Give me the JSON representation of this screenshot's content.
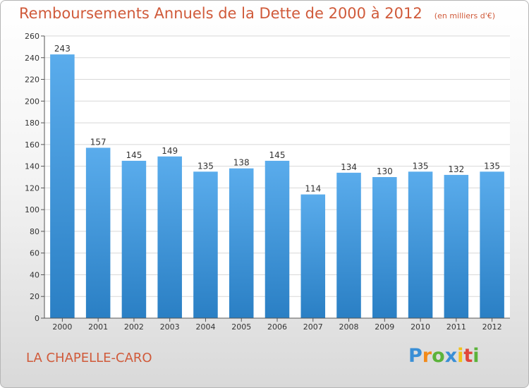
{
  "chart": {
    "title": "Remboursements Annuels de la Dette de 2000 à 2012",
    "unit": "(en milliers d'€)"
  },
  "footer": {
    "commune": "LA CHAPELLE-CARO",
    "logo": {
      "letters": [
        "P",
        "r",
        "o",
        "x",
        "i",
        "t",
        "i"
      ],
      "colors": [
        "#3a8fd6",
        "#f28a1a",
        "#5bb33a",
        "#3a8fd6",
        "#f2c21a",
        "#e0463a",
        "#5bb33a"
      ]
    }
  },
  "chart_data": {
    "type": "bar",
    "categories": [
      "2000",
      "2001",
      "2002",
      "2003",
      "2004",
      "2005",
      "2006",
      "2007",
      "2008",
      "2009",
      "2010",
      "2011",
      "2012"
    ],
    "values": [
      243,
      157,
      145,
      149,
      135,
      138,
      145,
      114,
      134,
      130,
      135,
      132,
      135
    ],
    "title": "Remboursements Annuels de la Dette de 2000 à 2012",
    "ylim": [
      0,
      260
    ],
    "yticks": [
      0,
      20,
      40,
      60,
      80,
      100,
      120,
      140,
      160,
      180,
      200,
      220,
      240,
      260
    ],
    "grid": true,
    "bar_color_top": "#5aacec",
    "bar_color_bottom": "#2a7fc4"
  }
}
